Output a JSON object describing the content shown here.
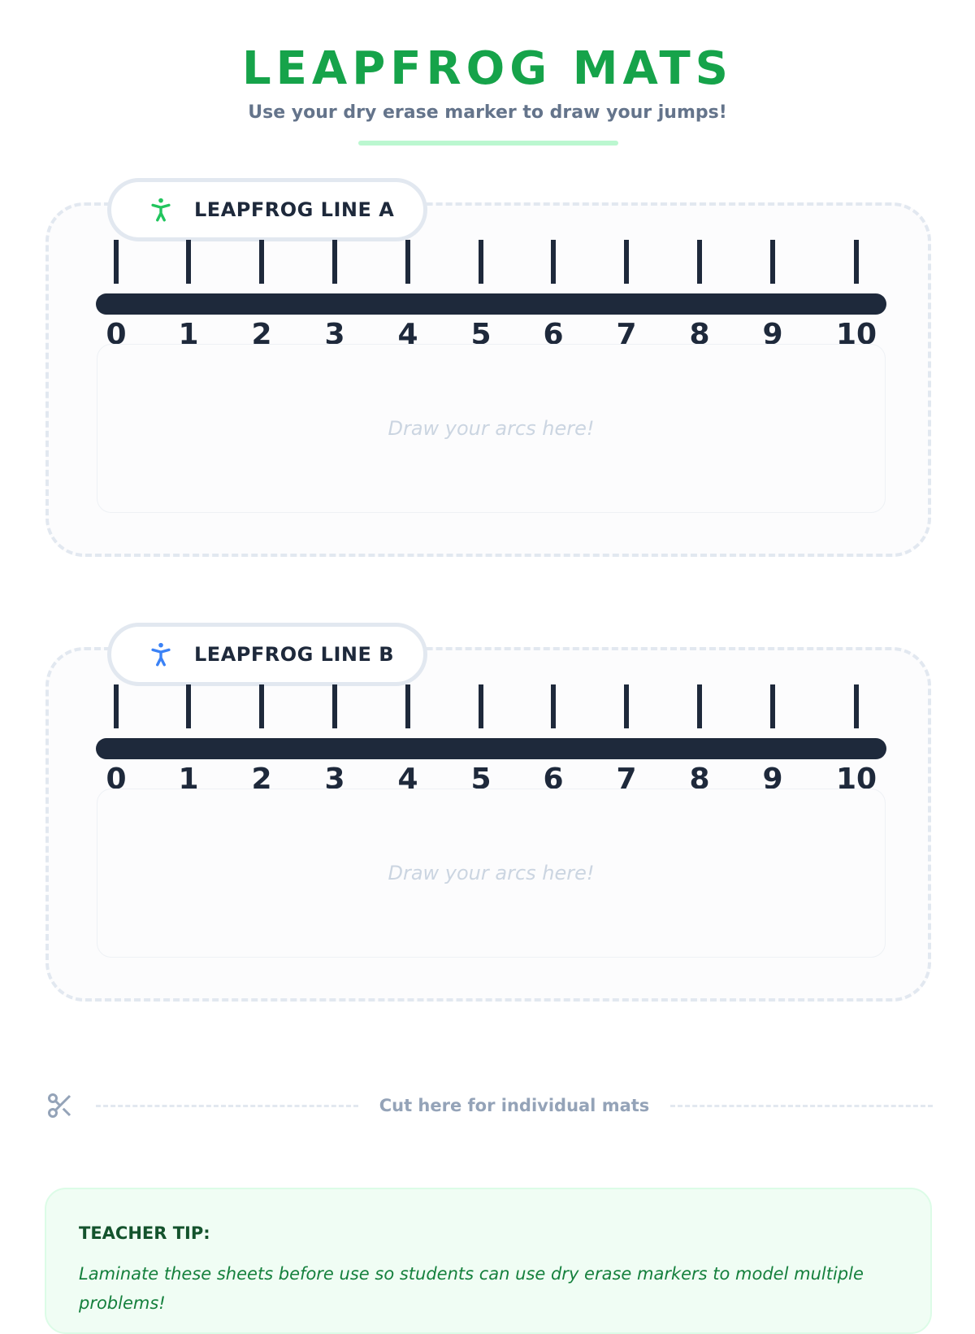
{
  "header": {
    "title": "LEAPFROG MATS",
    "subtitle": "Use your dry erase marker to draw your jumps!"
  },
  "mats": [
    {
      "label": "LEAPFROG LINE A",
      "icon": "person-icon",
      "icon_color": "#22c55e",
      "placeholder": "Draw your arcs here!"
    },
    {
      "label": "LEAPFROG LINE B",
      "icon": "person-icon",
      "icon_color": "#3b82f6",
      "placeholder": "Draw your arcs here!"
    }
  ],
  "numbers": [
    "0",
    "1",
    "2",
    "3",
    "4",
    "5",
    "6",
    "7",
    "8",
    "9",
    "10"
  ],
  "cut": {
    "label": "Cut here for individual mats",
    "icon": "scissors-icon"
  },
  "tip": {
    "title": "TEACHER TIP:",
    "text": "Laminate these sheets before use so students can use dry erase markers to model multiple problems!"
  }
}
